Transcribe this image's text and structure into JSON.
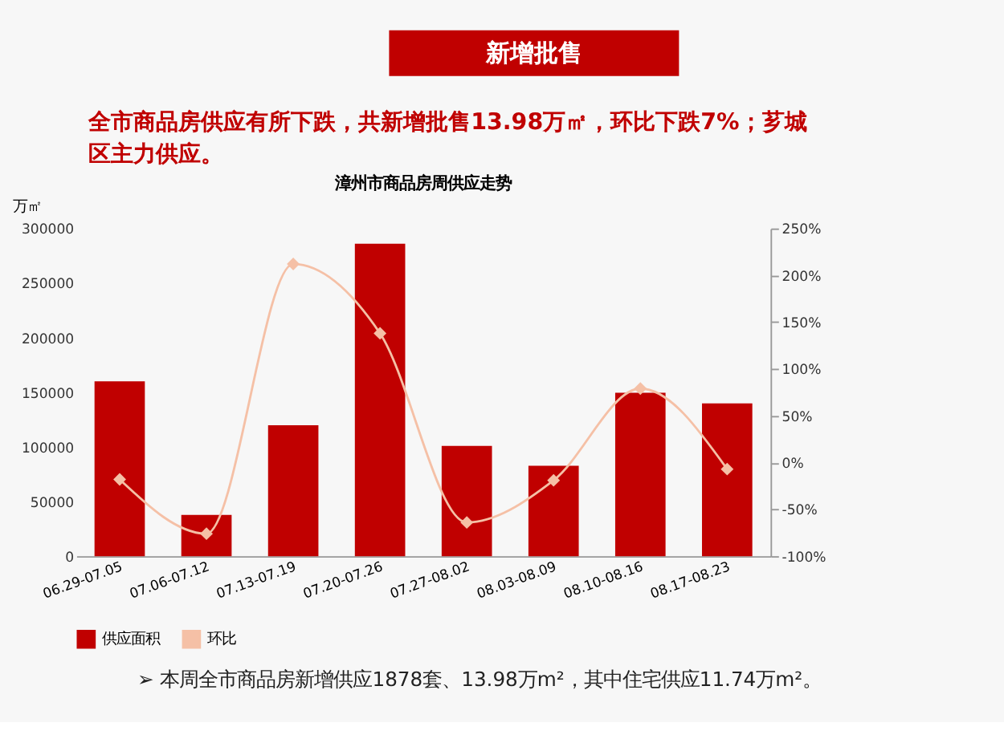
{
  "chart_data": {
    "type": "bar",
    "title": "漳州市商品房周供应走势",
    "ylabel": "万㎡",
    "annotations": [
      "新增批售",
      "全市商品房供应有所下跌，共新增批售13.98万㎡，环比下跌7%；芗城区主力供应。",
      "➢ 本周全市商品房新增供应1878套、13.98万m²，其中住宅供应11.74万m²。"
    ],
    "categories": [
      "06.29-07.05",
      "07.06-07.12",
      "07.13-07.19",
      "07.20-07.26",
      "07.27-08.02",
      "08.03-08.09",
      "08.10-08.16",
      "08.17-08.23"
    ],
    "series": [
      {
        "name": "供应面积",
        "color": "#c00000",
        "values": [
          160000,
          37800,
          119800,
          286000,
          101000,
          82800,
          149600,
          139800
        ]
      },
      {
        "name": "环比",
        "type": "line",
        "axis": "y2",
        "color": "#f5c0a6",
        "values": [
          -18,
          -76,
          212,
          138,
          -64,
          -19,
          79,
          -7
        ]
      }
    ],
    "ylim": [
      0,
      300000
    ],
    "yticks": [
      0,
      50000,
      100000,
      150000,
      200000,
      250000,
      300000
    ],
    "y2lim": [
      -100,
      250
    ],
    "y2ticks": [
      {
        "value": -100,
        "label": "-100%"
      },
      {
        "value": -50,
        "label": "-50%"
      },
      {
        "value": 0,
        "label": "0%"
      },
      {
        "value": 50,
        "label": "50%"
      },
      {
        "value": 100,
        "label": "100%"
      },
      {
        "value": 150,
        "label": "150%"
      },
      {
        "value": 200,
        "label": "200%"
      },
      {
        "value": 250,
        "label": "250%"
      }
    ],
    "marker": "diamond",
    "line_style": "solid",
    "legend": "bottom",
    "grid": false
  }
}
